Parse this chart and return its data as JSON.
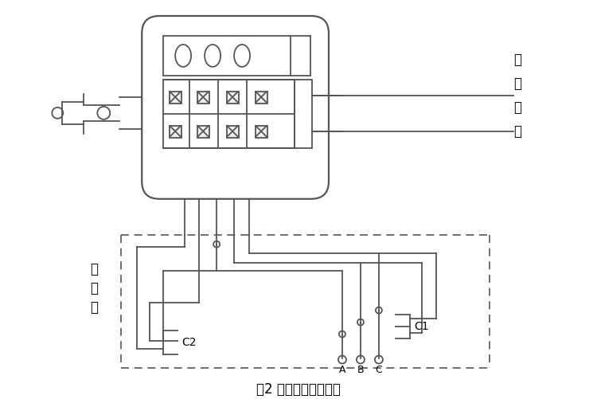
{
  "title": "图2 限位器接线示意图",
  "label_motor": [
    "接",
    "电",
    "动",
    "机"
  ],
  "label_box": [
    "控",
    "制",
    "箱"
  ],
  "label_C1": "C1",
  "label_C2": "C2",
  "label_ABC": [
    "A",
    "B",
    "C"
  ],
  "bg_color": "#ffffff",
  "line_color": "#555555",
  "line_width": 1.3,
  "dashed_color": "#555555"
}
